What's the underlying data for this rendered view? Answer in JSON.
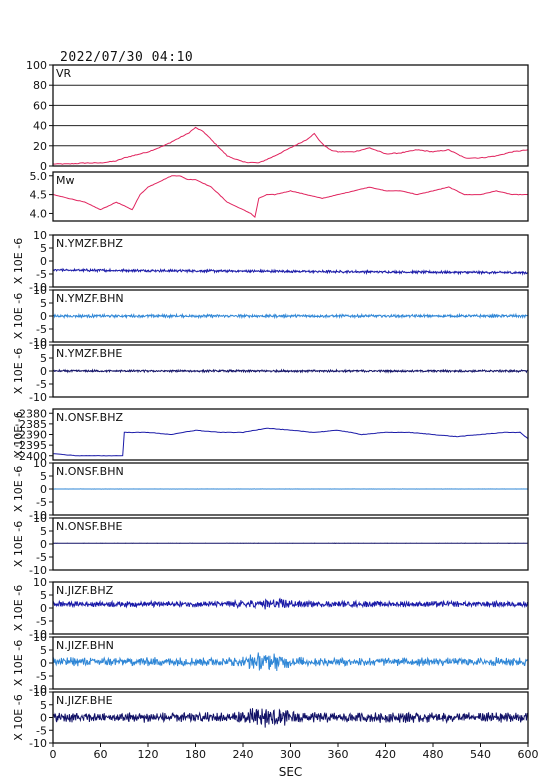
{
  "header": {
    "timestamp": "2022/07/30 04:10"
  },
  "x_axis": {
    "label": "SEC",
    "range": [
      0,
      600
    ],
    "ticks": [
      "0",
      "60",
      "120",
      "180",
      "240",
      "300",
      "360",
      "420",
      "480",
      "540",
      "600"
    ]
  },
  "ylabel_rotated": "X 10E -6",
  "chart_data": [
    {
      "type": "line",
      "label": "VR",
      "ylim": [
        0,
        100
      ],
      "yticks": [
        "100",
        "80",
        "60",
        "40",
        "20",
        "0"
      ],
      "grid": true,
      "color": "#e0245e",
      "x": [
        0,
        20,
        40,
        60,
        80,
        90,
        100,
        110,
        120,
        130,
        140,
        150,
        160,
        170,
        180,
        190,
        200,
        210,
        220,
        240,
        260,
        280,
        300,
        310,
        320,
        330,
        340,
        350,
        360,
        380,
        400,
        420,
        440,
        460,
        480,
        500,
        520,
        540,
        560,
        580,
        600
      ],
      "y": [
        2,
        2,
        3,
        3,
        5,
        8,
        10,
        12,
        14,
        17,
        20,
        24,
        28,
        32,
        38,
        34,
        26,
        18,
        10,
        4,
        3,
        10,
        18,
        22,
        26,
        32,
        22,
        16,
        14,
        14,
        18,
        12,
        13,
        16,
        14,
        16,
        8,
        8,
        10,
        14,
        16
      ]
    },
    {
      "type": "line",
      "label": "Mw",
      "ylim": [
        3.8,
        5.1
      ],
      "yticks": [
        "5.0",
        "4.5",
        "4.0"
      ],
      "grid": false,
      "color": "#e0245e",
      "x": [
        0,
        20,
        40,
        60,
        80,
        100,
        110,
        120,
        130,
        140,
        150,
        160,
        170,
        180,
        190,
        200,
        210,
        220,
        230,
        240,
        250,
        255,
        260,
        270,
        280,
        300,
        320,
        340,
        360,
        380,
        400,
        420,
        440,
        460,
        480,
        500,
        520,
        540,
        560,
        580,
        600
      ],
      "y": [
        4.5,
        4.4,
        4.3,
        4.1,
        4.3,
        4.1,
        4.5,
        4.7,
        4.8,
        4.9,
        5.0,
        5.0,
        4.9,
        4.9,
        4.8,
        4.7,
        4.5,
        4.3,
        4.2,
        4.1,
        4.0,
        3.9,
        4.4,
        4.5,
        4.5,
        4.6,
        4.5,
        4.4,
        4.5,
        4.6,
        4.7,
        4.6,
        4.6,
        4.5,
        4.6,
        4.7,
        4.5,
        4.5,
        4.6,
        4.5,
        4.5
      ]
    },
    {
      "type": "line",
      "label": "N.YMZF.BHZ",
      "ylim": [
        -10,
        10
      ],
      "yticks": [
        "10",
        "5",
        "0",
        "-5",
        "-10"
      ],
      "color": "#1a1aa8",
      "baseline": -3.5,
      "noise": 0.35,
      "end": -4.5
    },
    {
      "type": "line",
      "label": "N.YMZF.BHN",
      "ylim": [
        -10,
        10
      ],
      "yticks": [
        "10",
        "5",
        "0",
        "-5",
        "-10"
      ],
      "color": "#2e86d6",
      "baseline": 0,
      "noise": 0.4
    },
    {
      "type": "line",
      "label": "N.YMZF.BHE",
      "ylim": [
        -10,
        10
      ],
      "yticks": [
        "10",
        "5",
        "0",
        "-5",
        "-10"
      ],
      "color": "#111166",
      "baseline": 0,
      "noise": 0.3
    },
    {
      "type": "line",
      "label": "N.ONSF.BHZ",
      "ylim": [
        -2402,
        -2378
      ],
      "yticks": [
        "-2380",
        "-2385",
        "-2390",
        "-2395",
        "-2400"
      ],
      "color": "#1a1aa8",
      "x": [
        0,
        30,
        60,
        88,
        90,
        120,
        150,
        180,
        210,
        240,
        270,
        300,
        330,
        360,
        390,
        420,
        450,
        480,
        510,
        540,
        570,
        590,
        600
      ],
      "y": [
        -2399,
        -2400,
        -2400,
        -2400,
        -2389,
        -2389,
        -2390,
        -2388,
        -2389,
        -2389,
        -2387,
        -2388,
        -2389,
        -2388,
        -2390,
        -2389,
        -2389,
        -2390,
        -2391,
        -2390,
        -2389,
        -2389,
        -2392
      ]
    },
    {
      "type": "line",
      "label": "N.ONSF.BHN",
      "ylim": [
        -10,
        10
      ],
      "yticks": [
        "10",
        "5",
        "0",
        "-5",
        "-10"
      ],
      "color": "#2e86d6",
      "baseline": 0,
      "noise": 0.02
    },
    {
      "type": "line",
      "label": "N.ONSF.BHE",
      "ylim": [
        -10,
        10
      ],
      "yticks": [
        "10",
        "5",
        "0",
        "-5",
        "-10"
      ],
      "color": "#111166",
      "baseline": 0.3,
      "noise": 0.03
    },
    {
      "type": "line",
      "label": "N.JIZF.BHZ",
      "ylim": [
        -10,
        10
      ],
      "yticks": [
        "10",
        "5",
        "0",
        "-5",
        "-10"
      ],
      "color": "#1a1aa8",
      "baseline": 1.5,
      "noise": 0.8
    },
    {
      "type": "line",
      "label": "N.JIZF.BHN",
      "ylim": [
        -10,
        10
      ],
      "yticks": [
        "10",
        "5",
        "0",
        "-5",
        "-10"
      ],
      "color": "#2e86d6",
      "baseline": 0.5,
      "noise": 1.2
    },
    {
      "type": "line",
      "label": "N.JIZF.BHE",
      "ylim": [
        -10,
        10
      ],
      "yticks": [
        "10",
        "5",
        "0",
        "-5",
        "-10"
      ],
      "color": "#111166",
      "baseline": 0,
      "noise": 1.4
    }
  ]
}
